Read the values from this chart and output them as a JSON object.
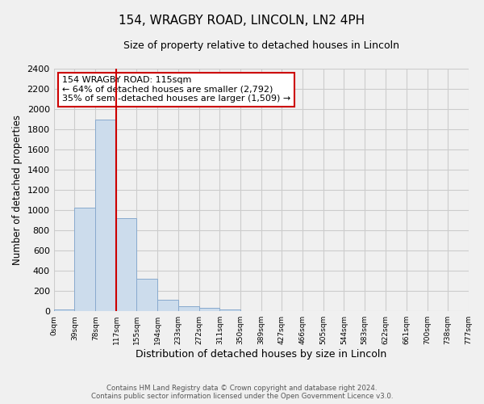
{
  "title": "154, WRAGBY ROAD, LINCOLN, LN2 4PH",
  "subtitle": "Size of property relative to detached houses in Lincoln",
  "xlabel": "Distribution of detached houses by size in Lincoln",
  "ylabel": "Number of detached properties",
  "bin_edges": [
    0,
    39,
    78,
    117,
    155,
    194,
    233,
    272,
    311,
    350,
    389,
    427,
    466,
    505,
    544,
    583,
    622,
    661,
    700,
    738,
    777
  ],
  "bar_heights": [
    20,
    1025,
    1900,
    920,
    320,
    110,
    50,
    30,
    20,
    0,
    0,
    0,
    0,
    0,
    0,
    0,
    0,
    0,
    0,
    0
  ],
  "bar_color": "#ccdcec",
  "bar_edgecolor": "#88aace",
  "property_line_x": 117,
  "property_line_color": "#cc0000",
  "annotation_text": "154 WRAGBY ROAD: 115sqm\n← 64% of detached houses are smaller (2,792)\n35% of semi-detached houses are larger (1,509) →",
  "annotation_box_edgecolor": "#cc0000",
  "annotation_box_facecolor": "#ffffff",
  "ylim": [
    0,
    2400
  ],
  "yticks": [
    0,
    200,
    400,
    600,
    800,
    1000,
    1200,
    1400,
    1600,
    1800,
    2000,
    2200,
    2400
  ],
  "xtick_labels": [
    "0sqm",
    "39sqm",
    "78sqm",
    "117sqm",
    "155sqm",
    "194sqm",
    "233sqm",
    "272sqm",
    "311sqm",
    "350sqm",
    "389sqm",
    "427sqm",
    "466sqm",
    "505sqm",
    "544sqm",
    "583sqm",
    "622sqm",
    "661sqm",
    "700sqm",
    "738sqm",
    "777sqm"
  ],
  "footer_line1": "Contains HM Land Registry data © Crown copyright and database right 2024.",
  "footer_line2": "Contains public sector information licensed under the Open Government Licence v3.0.",
  "grid_color": "#cccccc",
  "background_color": "#f0f0f0",
  "title_fontsize": 11,
  "subtitle_fontsize": 9,
  "annot_fontsize": 8
}
